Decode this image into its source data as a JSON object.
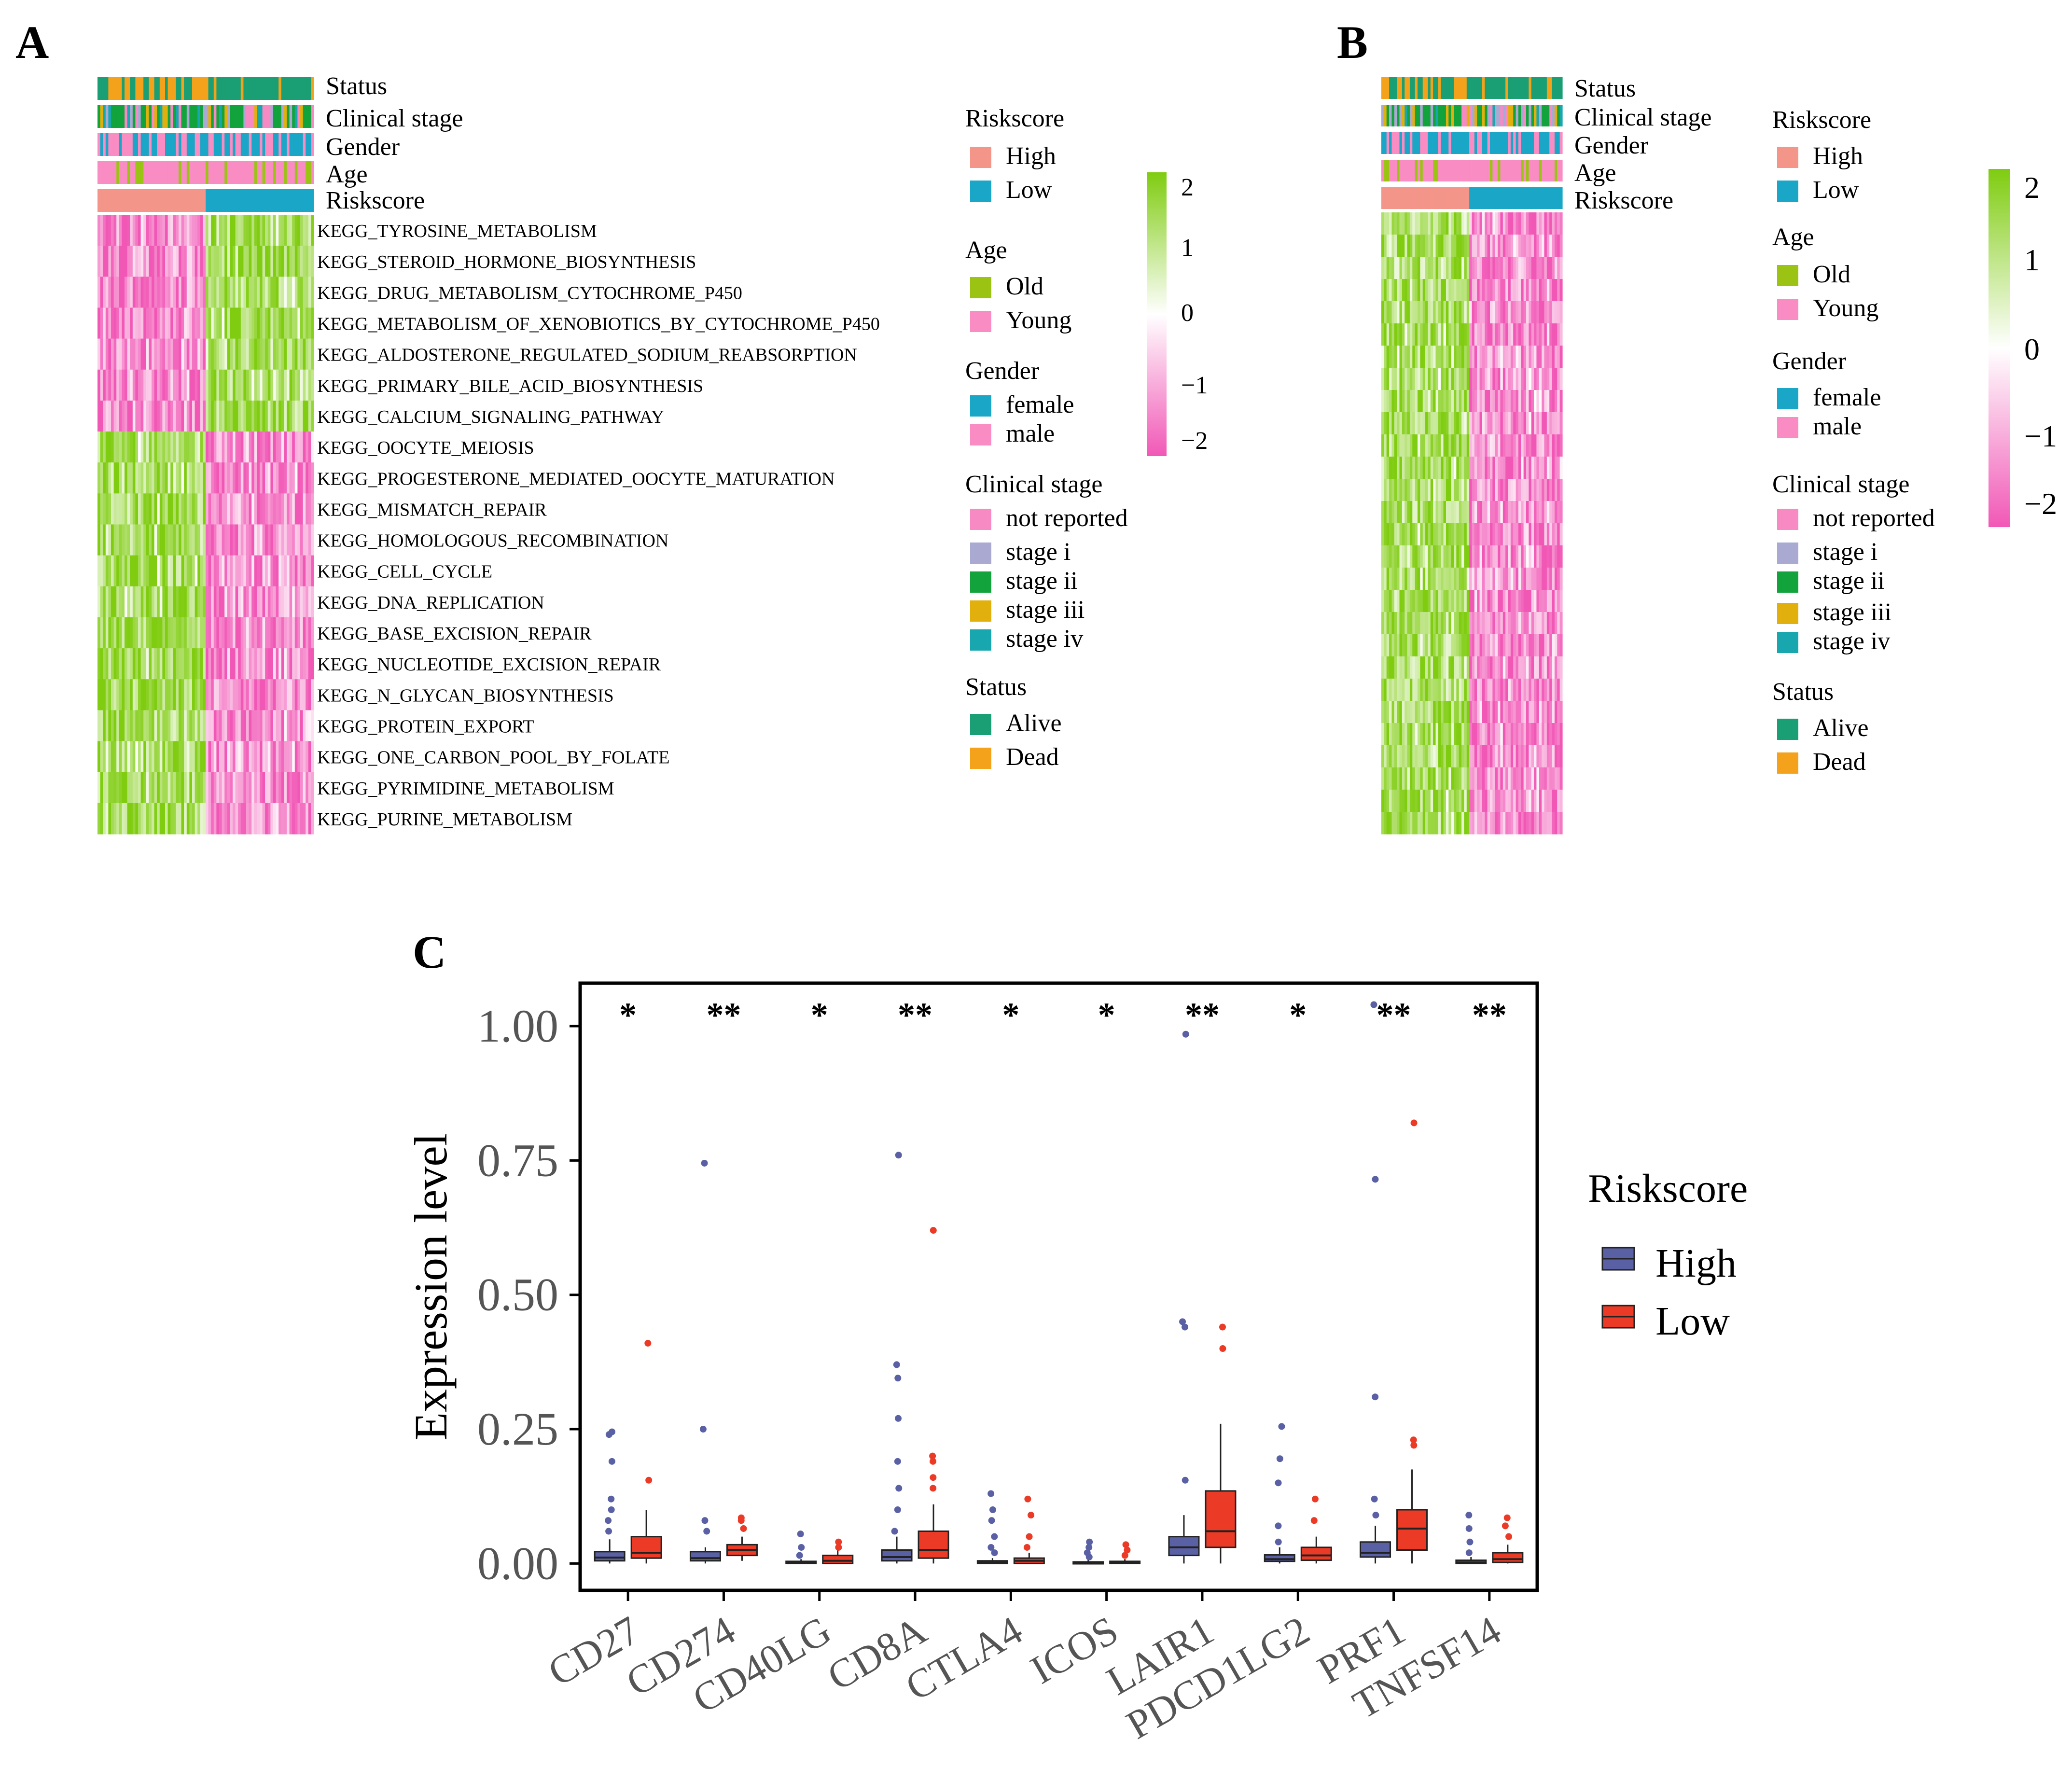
{
  "colors": {
    "high": "#F4958A",
    "low": "#1AA6C6",
    "old": "#9BC313",
    "young": "#F88CC3",
    "female": "#1AA6C6",
    "male": "#F88CC3",
    "not_reported": "#F78AC3",
    "stage_i": "#A9A9D2",
    "stage_ii": "#12A33C",
    "stage_iii": "#E2B00D",
    "stage_iv": "#18A7AE",
    "alive": "#1A9E73",
    "dead": "#F4A21C",
    "heat_pos": "#7FCC10",
    "heat_mid": "#FFFFFF",
    "heat_neg": "#F158B6",
    "box_high": "#5A60A4",
    "box_low": "#EB3B26"
  },
  "panels": {
    "a": {
      "label": "A",
      "annotation_tracks": [
        "Status",
        "Clinical stage",
        "Gender",
        "Age",
        "Riskscore"
      ],
      "pathways": [
        "KEGG_TYROSINE_METABOLISM",
        "KEGG_STEROID_HORMONE_BIOSYNTHESIS",
        "KEGG_DRUG_METABOLISM_CYTOCHROME_P450",
        "KEGG_METABOLISM_OF_XENOBIOTICS_BY_CYTOCHROME_P450",
        "KEGG_ALDOSTERONE_REGULATED_SODIUM_REABSORPTION",
        "KEGG_PRIMARY_BILE_ACID_BIOSYNTHESIS",
        "KEGG_CALCIUM_SIGNALING_PATHWAY",
        "KEGG_OOCYTE_MEIOSIS",
        "KEGG_PROGESTERONE_MEDIATED_OOCYTE_MATURATION",
        "KEGG_MISMATCH_REPAIR",
        "KEGG_HOMOLOGOUS_RECOMBINATION",
        "KEGG_CELL_CYCLE",
        "KEGG_DNA_REPLICATION",
        "KEGG_BASE_EXCISION_REPAIR",
        "KEGG_NUCLEOTIDE_EXCISION_REPAIR",
        "KEGG_N_GLYCAN_BIOSYNTHESIS",
        "KEGG_PROTEIN_EXPORT",
        "KEGG_ONE_CARBON_POOL_BY_FOLATE",
        "KEGG_PYRIMIDINE_METABOLISM",
        "KEGG_PURINE_METABOLISM"
      ],
      "legend": [
        {
          "title": "Riskscore",
          "items": [
            {
              "label": "High",
              "color": "#F4958A"
            },
            {
              "label": "Low",
              "color": "#1AA6C6"
            }
          ]
        },
        {
          "title": "Age",
          "items": [
            {
              "label": "Old",
              "color": "#9BC313"
            },
            {
              "label": "Young",
              "color": "#F88CC3"
            }
          ]
        },
        {
          "title": "Gender",
          "items": [
            {
              "label": "female",
              "color": "#1AA6C6"
            },
            {
              "label": "male",
              "color": "#F88CC3"
            }
          ]
        },
        {
          "title": "Clinical stage",
          "items": [
            {
              "label": "not reported",
              "color": "#F78AC3"
            },
            {
              "label": "stage i",
              "color": "#A9A9D2"
            },
            {
              "label": "stage ii",
              "color": "#12A33C"
            },
            {
              "label": "stage iii",
              "color": "#E2B00D"
            },
            {
              "label": "stage iv",
              "color": "#18A7AE"
            }
          ]
        },
        {
          "title": "Status",
          "items": [
            {
              "label": "Alive",
              "color": "#1A9E73"
            },
            {
              "label": "Dead",
              "color": "#F4A21C"
            }
          ]
        }
      ],
      "colorbar_ticks": [
        "2",
        "1",
        "0",
        "−1",
        "−2"
      ]
    },
    "b": {
      "label": "B",
      "annotation_tracks": [
        "Status",
        "Clinical stage",
        "Gender",
        "Age",
        "Riskscore"
      ],
      "legend": [
        {
          "title": "Riskscore",
          "items": [
            {
              "label": "High",
              "color": "#F4958A"
            },
            {
              "label": "Low",
              "color": "#1AA6C6"
            }
          ]
        },
        {
          "title": "Age",
          "items": [
            {
              "label": "Old",
              "color": "#9BC313"
            },
            {
              "label": "Young",
              "color": "#F88CC3"
            }
          ]
        },
        {
          "title": "Gender",
          "items": [
            {
              "label": "female",
              "color": "#1AA6C6"
            },
            {
              "label": "male",
              "color": "#F88CC3"
            }
          ]
        },
        {
          "title": "Clinical stage",
          "items": [
            {
              "label": "not reported",
              "color": "#F78AC3"
            },
            {
              "label": "stage i",
              "color": "#A9A9D2"
            },
            {
              "label": "stage ii",
              "color": "#12A33C"
            },
            {
              "label": "stage iii",
              "color": "#E2B00D"
            },
            {
              "label": "stage iv",
              "color": "#18A7AE"
            }
          ]
        },
        {
          "title": "Status",
          "items": [
            {
              "label": "Alive",
              "color": "#1A9E73"
            },
            {
              "label": "Dead",
              "color": "#F4A21C"
            }
          ]
        }
      ],
      "colorbar_ticks": [
        "2",
        "1",
        "0",
        "−1",
        "−2"
      ]
    },
    "c": {
      "label": "C"
    }
  },
  "chart_data": [
    {
      "type": "heatmap",
      "panel": "A",
      "rows": 20,
      "row_labels_ref": "panels.a.pathways",
      "annotation_tracks": [
        "Status",
        "Clinical stage",
        "Gender",
        "Age",
        "Riskscore"
      ],
      "riskscore_split": {
        "High": "left",
        "Low": "right"
      },
      "color_scale": [
        -2,
        2
      ],
      "pattern": "rows 1-7 lower in High (pink) / higher in Low (green); rows 8-20 higher in High (green) / lower in Low (pink)"
    },
    {
      "type": "heatmap",
      "panel": "B",
      "annotation_tracks": [
        "Status",
        "Clinical stage",
        "Gender",
        "Age",
        "Riskscore"
      ],
      "riskscore_split": {
        "High": "left",
        "Low": "right"
      },
      "color_scale": [
        -2,
        2
      ],
      "pattern": "higher in High (green), lower in Low (pink)"
    },
    {
      "type": "box",
      "panel": "C",
      "ylabel": "Expression level",
      "ylim": [
        -0.05,
        1.08
      ],
      "yticks": [
        0.0,
        0.25,
        0.5,
        0.75,
        1.0
      ],
      "ytick_labels": [
        "0.00",
        "0.25",
        "0.50",
        "0.75",
        "1.00"
      ],
      "categories": [
        "CD27",
        "CD274",
        "CD40LG",
        "CD8A",
        "CTLA4",
        "ICOS",
        "LAIR1",
        "PDCD1LG2",
        "PRF1",
        "TNFSF14"
      ],
      "significance": [
        "*",
        "**",
        "*",
        "**",
        "*",
        "*",
        "**",
        "*",
        "**",
        "**"
      ],
      "legend": {
        "title": "Riskscore",
        "items": [
          "High",
          "Low"
        ]
      },
      "series": [
        {
          "name": "High",
          "color": "#5A60A4",
          "boxes": [
            {
              "q1": 0.005,
              "median": 0.011,
              "q3": 0.022,
              "whisk_lo": 0.0,
              "whisk_hi": 0.045,
              "outliers": [
                0.06,
                0.08,
                0.1,
                0.12,
                0.19,
                0.24,
                0.245
              ]
            },
            {
              "q1": 0.005,
              "median": 0.01,
              "q3": 0.022,
              "whisk_lo": 0.0,
              "whisk_hi": 0.03,
              "outliers": [
                0.06,
                0.08,
                0.25,
                0.745
              ]
            },
            {
              "q1": 0.0,
              "median": 0.002,
              "q3": 0.004,
              "whisk_lo": 0.0,
              "whisk_hi": 0.008,
              "outliers": [
                0.015,
                0.03,
                0.055
              ]
            },
            {
              "q1": 0.005,
              "median": 0.012,
              "q3": 0.025,
              "whisk_lo": 0.0,
              "whisk_hi": 0.05,
              "outliers": [
                0.06,
                0.1,
                0.14,
                0.19,
                0.27,
                0.345,
                0.37,
                0.76
              ]
            },
            {
              "q1": 0.0,
              "median": 0.002,
              "q3": 0.005,
              "whisk_lo": 0.0,
              "whisk_hi": 0.01,
              "outliers": [
                0.02,
                0.03,
                0.05,
                0.08,
                0.1,
                0.13
              ]
            },
            {
              "q1": 0.0,
              "median": 0.001,
              "q3": 0.003,
              "whisk_lo": 0.0,
              "whisk_hi": 0.006,
              "outliers": [
                0.012,
                0.02,
                0.03,
                0.04
              ]
            },
            {
              "q1": 0.015,
              "median": 0.03,
              "q3": 0.05,
              "whisk_lo": 0.0,
              "whisk_hi": 0.09,
              "outliers": [
                0.155,
                0.44,
                0.45,
                0.985
              ]
            },
            {
              "q1": 0.004,
              "median": 0.008,
              "q3": 0.016,
              "whisk_lo": 0.0,
              "whisk_hi": 0.03,
              "outliers": [
                0.04,
                0.07,
                0.15,
                0.195,
                0.255
              ]
            },
            {
              "q1": 0.012,
              "median": 0.02,
              "q3": 0.04,
              "whisk_lo": 0.0,
              "whisk_hi": 0.07,
              "outliers": [
                0.09,
                0.12,
                0.31,
                0.715,
                1.04
              ]
            },
            {
              "q1": 0.0,
              "median": 0.002,
              "q3": 0.006,
              "whisk_lo": 0.0,
              "whisk_hi": 0.012,
              "outliers": [
                0.02,
                0.04,
                0.065,
                0.09
              ]
            }
          ]
        },
        {
          "name": "Low",
          "color": "#EB3B26",
          "boxes": [
            {
              "q1": 0.01,
              "median": 0.02,
              "q3": 0.05,
              "whisk_lo": 0.0,
              "whisk_hi": 0.1,
              "outliers": [
                0.155,
                0.41
              ]
            },
            {
              "q1": 0.015,
              "median": 0.025,
              "q3": 0.035,
              "whisk_lo": 0.005,
              "whisk_hi": 0.05,
              "outliers": [
                0.065,
                0.08,
                0.085
              ]
            },
            {
              "q1": 0.0,
              "median": 0.005,
              "q3": 0.015,
              "whisk_lo": 0.0,
              "whisk_hi": 0.025,
              "outliers": [
                0.03,
                0.04
              ]
            },
            {
              "q1": 0.01,
              "median": 0.025,
              "q3": 0.06,
              "whisk_lo": 0.0,
              "whisk_hi": 0.11,
              "outliers": [
                0.14,
                0.16,
                0.19,
                0.2,
                0.62
              ]
            },
            {
              "q1": 0.0,
              "median": 0.005,
              "q3": 0.01,
              "whisk_lo": 0.0,
              "whisk_hi": 0.02,
              "outliers": [
                0.03,
                0.05,
                0.09,
                0.12
              ]
            },
            {
              "q1": 0.0,
              "median": 0.002,
              "q3": 0.004,
              "whisk_lo": 0.0,
              "whisk_hi": 0.008,
              "outliers": [
                0.015,
                0.025,
                0.035
              ]
            },
            {
              "q1": 0.03,
              "median": 0.06,
              "q3": 0.135,
              "whisk_lo": 0.0,
              "whisk_hi": 0.26,
              "outliers": [
                0.4,
                0.44
              ]
            },
            {
              "q1": 0.006,
              "median": 0.015,
              "q3": 0.03,
              "whisk_lo": 0.0,
              "whisk_hi": 0.05,
              "outliers": [
                0.08,
                0.12
              ]
            },
            {
              "q1": 0.025,
              "median": 0.065,
              "q3": 0.1,
              "whisk_lo": 0.0,
              "whisk_hi": 0.175,
              "outliers": [
                0.22,
                0.23,
                0.82
              ]
            },
            {
              "q1": 0.002,
              "median": 0.008,
              "q3": 0.02,
              "whisk_lo": 0.0,
              "whisk_hi": 0.035,
              "outliers": [
                0.05,
                0.07,
                0.085
              ]
            }
          ]
        }
      ]
    }
  ]
}
